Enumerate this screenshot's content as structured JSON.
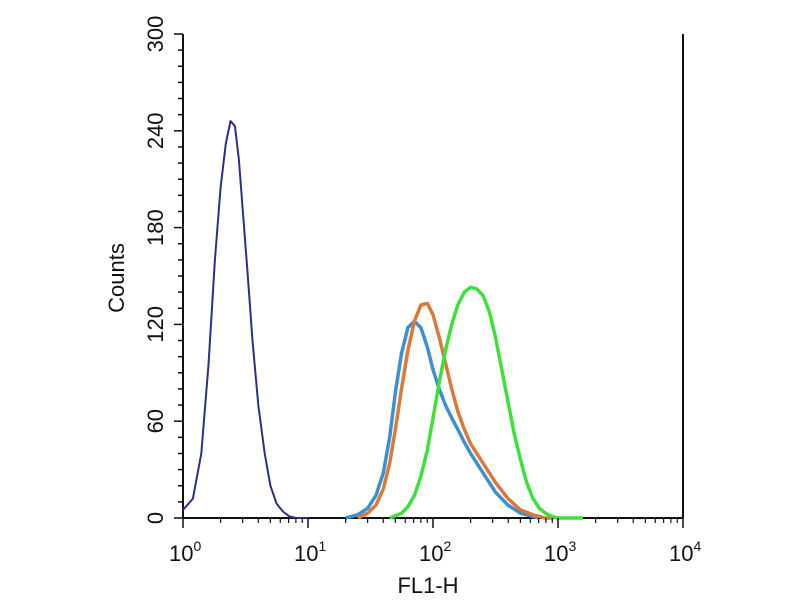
{
  "chart_data": {
    "type": "line",
    "title": "",
    "xlabel": "FL1-H",
    "ylabel": "Counts",
    "x_scale": "log",
    "xlim": [
      1,
      10000
    ],
    "ylim": [
      0,
      300
    ],
    "x_ticks": [
      {
        "value": 1,
        "base": "10",
        "exp": "0"
      },
      {
        "value": 10,
        "base": "10",
        "exp": "1"
      },
      {
        "value": 100,
        "base": "10",
        "exp": "2"
      },
      {
        "value": 1000,
        "base": "10",
        "exp": "3"
      },
      {
        "value": 10000,
        "base": "10",
        "exp": "4"
      }
    ],
    "y_ticks": [
      0,
      60,
      120,
      180,
      240,
      300
    ],
    "grid": false,
    "legend": "none",
    "series": [
      {
        "color": "#2b2f8c",
        "x": [
          1.0,
          1.2,
          1.4,
          1.6,
          1.8,
          2.0,
          2.2,
          2.4,
          2.6,
          2.8,
          3.0,
          3.3,
          3.6,
          4.0,
          4.5,
          5.0,
          5.6,
          6.3,
          7.1,
          8.0,
          10.0
        ],
        "y": [
          5,
          12,
          40,
          95,
          160,
          205,
          232,
          246,
          243,
          222,
          192,
          150,
          110,
          70,
          40,
          20,
          9,
          4,
          1,
          0,
          0
        ]
      },
      {
        "color": "#3e8fd0",
        "x": [
          20,
          25,
          30,
          35,
          40,
          45,
          50,
          56,
          63,
          71,
          80,
          90,
          100,
          112,
          126,
          141,
          158,
          178,
          200,
          251,
          316,
          398,
          501,
          631,
          700
        ],
        "y": [
          0,
          2,
          6,
          14,
          28,
          50,
          78,
          102,
          118,
          122,
          118,
          106,
          92,
          80,
          70,
          62,
          55,
          47,
          40,
          28,
          16,
          8,
          3,
          1,
          0
        ]
      },
      {
        "color": "#d9793a",
        "x": [
          25,
          30,
          35,
          40,
          45,
          50,
          56,
          63,
          71,
          80,
          90,
          100,
          112,
          126,
          141,
          158,
          178,
          200,
          251,
          316,
          398,
          501,
          631,
          794,
          900
        ],
        "y": [
          0,
          3,
          8,
          18,
          34,
          55,
          80,
          104,
          122,
          132,
          133,
          126,
          112,
          96,
          80,
          66,
          55,
          46,
          34,
          22,
          12,
          5,
          2,
          0,
          0
        ]
      },
      {
        "color": "#3ee03a",
        "x": [
          45,
          56,
          63,
          71,
          80,
          90,
          100,
          112,
          126,
          141,
          158,
          178,
          200,
          224,
          251,
          282,
          316,
          355,
          398,
          447,
          501,
          562,
          631,
          708,
          794,
          891,
          1000,
          1259,
          1585
        ],
        "y": [
          0,
          3,
          7,
          14,
          26,
          42,
          62,
          84,
          104,
          120,
          132,
          140,
          143,
          142,
          138,
          128,
          112,
          92,
          72,
          52,
          36,
          22,
          12,
          6,
          3,
          1,
          0,
          0,
          0
        ]
      }
    ]
  }
}
